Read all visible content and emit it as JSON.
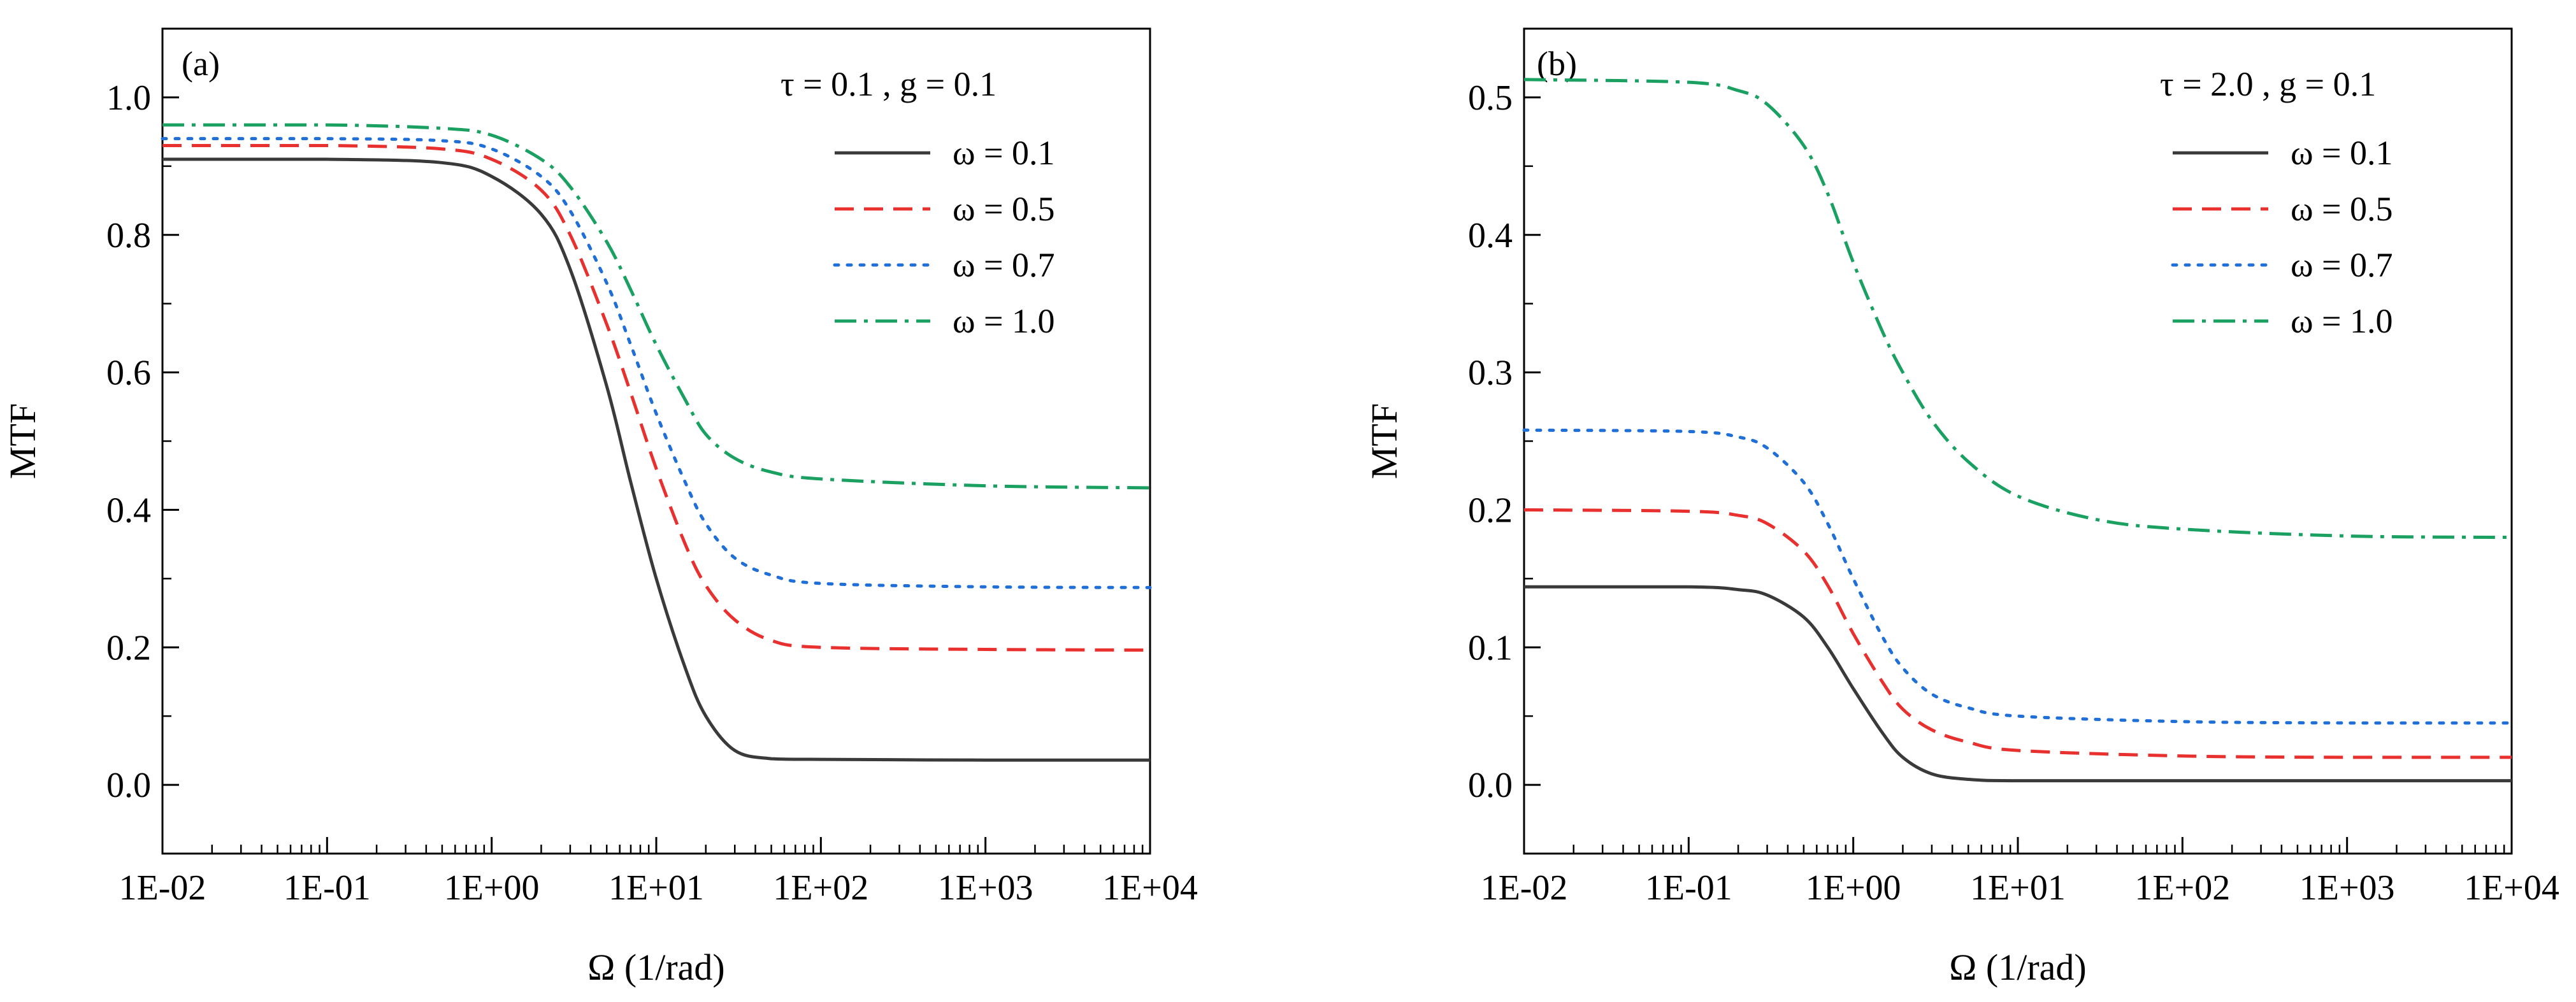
{
  "chart_data": [
    {
      "type": "line",
      "panel_label": "(a)",
      "annotation": "τ = 0.1 , g = 0.1",
      "xlabel": "Ω (1/rad)",
      "ylabel": "MTF",
      "xscale": "log",
      "xlim": [
        0.01,
        10000
      ],
      "ylim": [
        -0.1,
        1.1
      ],
      "xticks": [
        0.01,
        0.1,
        1,
        10,
        100,
        1000,
        10000
      ],
      "xtick_labels": [
        "1E-02",
        "1E-01",
        "1E+00",
        "1E+01",
        "1E+02",
        "1E+03",
        "1E+04"
      ],
      "yticks": [
        0.0,
        0.2,
        0.4,
        0.6,
        0.8,
        1.0
      ],
      "ytick_labels": [
        "0.0",
        "0.2",
        "0.4",
        "0.6",
        "0.8",
        "1.0"
      ],
      "legend_position": "top-right",
      "series": [
        {
          "name": "ω = 0.1",
          "color": "#3a3a3a",
          "dash": "solid",
          "x": [
            0.01,
            0.1,
            0.5,
            1,
            2,
            3,
            5,
            7,
            10,
            15,
            20,
            30,
            50,
            100,
            1000,
            10000
          ],
          "y": [
            0.91,
            0.91,
            0.905,
            0.885,
            0.83,
            0.75,
            0.58,
            0.44,
            0.3,
            0.17,
            0.1,
            0.05,
            0.038,
            0.037,
            0.036,
            0.036
          ]
        },
        {
          "name": "ω = 0.5",
          "color": "#e8312f",
          "dash": "dashed",
          "x": [
            0.01,
            0.1,
            0.5,
            1,
            2,
            3,
            5,
            7,
            10,
            15,
            20,
            30,
            50,
            100,
            1000,
            10000
          ],
          "y": [
            0.93,
            0.93,
            0.925,
            0.91,
            0.865,
            0.8,
            0.67,
            0.57,
            0.46,
            0.35,
            0.29,
            0.24,
            0.21,
            0.2,
            0.197,
            0.196
          ]
        },
        {
          "name": "ω = 0.7",
          "color": "#1f6fd6",
          "dash": "dotted",
          "x": [
            0.01,
            0.1,
            0.5,
            1,
            2,
            3,
            5,
            7,
            10,
            15,
            20,
            30,
            50,
            100,
            1000,
            10000
          ],
          "y": [
            0.94,
            0.94,
            0.937,
            0.925,
            0.885,
            0.835,
            0.73,
            0.64,
            0.54,
            0.44,
            0.38,
            0.33,
            0.305,
            0.293,
            0.288,
            0.287
          ]
        },
        {
          "name": "ω = 1.0",
          "color": "#1aa060",
          "dash": "dashdot",
          "x": [
            0.01,
            0.1,
            0.5,
            1,
            2,
            3,
            5,
            7,
            10,
            15,
            20,
            30,
            50,
            100,
            1000,
            10000
          ],
          "y": [
            0.96,
            0.96,
            0.955,
            0.945,
            0.91,
            0.87,
            0.79,
            0.72,
            0.64,
            0.56,
            0.51,
            0.475,
            0.455,
            0.445,
            0.435,
            0.432
          ]
        }
      ]
    },
    {
      "type": "line",
      "panel_label": "(b)",
      "annotation": "τ = 2.0 , g = 0.1",
      "xlabel": "Ω (1/rad)",
      "ylabel": "MTF",
      "xscale": "log",
      "xlim": [
        0.01,
        10000
      ],
      "ylim": [
        -0.05,
        0.55
      ],
      "xticks": [
        0.01,
        0.1,
        1,
        10,
        100,
        1000,
        10000
      ],
      "xtick_labels": [
        "1E-02",
        "1E-01",
        "1E+00",
        "1E+01",
        "1E+02",
        "1E+03",
        "1E+04"
      ],
      "yticks": [
        0.0,
        0.1,
        0.2,
        0.3,
        0.4,
        0.5
      ],
      "ytick_labels": [
        "0.0",
        "0.1",
        "0.2",
        "0.3",
        "0.4",
        "0.5"
      ],
      "legend_position": "top-right",
      "series": [
        {
          "name": "ω = 0.1",
          "color": "#3a3a3a",
          "dash": "solid",
          "x": [
            0.01,
            0.1,
            0.2,
            0.3,
            0.5,
            0.7,
            1,
            1.5,
            2,
            3,
            5,
            10,
            100,
            1000,
            10000
          ],
          "y": [
            0.144,
            0.144,
            0.142,
            0.138,
            0.122,
            0.1,
            0.07,
            0.038,
            0.02,
            0.008,
            0.004,
            0.003,
            0.003,
            0.003,
            0.003
          ]
        },
        {
          "name": "ω = 0.5",
          "color": "#e8312f",
          "dash": "dashed",
          "x": [
            0.01,
            0.1,
            0.2,
            0.3,
            0.5,
            0.7,
            1,
            1.5,
            2,
            3,
            5,
            10,
            100,
            1000,
            10000
          ],
          "y": [
            0.2,
            0.199,
            0.196,
            0.19,
            0.17,
            0.145,
            0.11,
            0.075,
            0.055,
            0.04,
            0.031,
            0.025,
            0.021,
            0.02,
            0.02
          ]
        },
        {
          "name": "ω = 0.7",
          "color": "#1f6fd6",
          "dash": "dotted",
          "x": [
            0.01,
            0.1,
            0.2,
            0.3,
            0.5,
            0.7,
            1,
            1.5,
            2,
            3,
            5,
            10,
            100,
            1000,
            10000
          ],
          "y": [
            0.258,
            0.257,
            0.253,
            0.245,
            0.22,
            0.19,
            0.15,
            0.108,
            0.085,
            0.066,
            0.056,
            0.05,
            0.046,
            0.045,
            0.045
          ]
        },
        {
          "name": "ω = 1.0",
          "color": "#1aa060",
          "dash": "dashdot",
          "x": [
            0.01,
            0.1,
            0.2,
            0.3,
            0.5,
            0.7,
            1,
            1.5,
            2,
            3,
            5,
            10,
            30,
            100,
            1000,
            10000
          ],
          "y": [
            0.513,
            0.511,
            0.505,
            0.495,
            0.465,
            0.43,
            0.38,
            0.33,
            0.3,
            0.265,
            0.235,
            0.21,
            0.193,
            0.186,
            0.181,
            0.18
          ]
        }
      ]
    }
  ]
}
